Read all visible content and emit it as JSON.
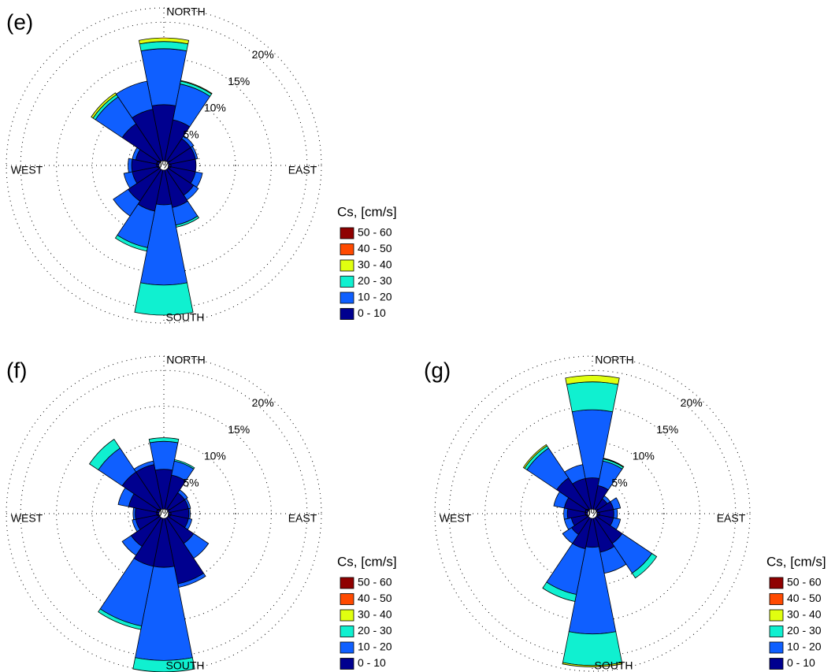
{
  "chart_data": [
    {
      "type": "windrose",
      "title": "(e)",
      "categories": [
        "NORTH",
        null,
        null,
        null,
        "EAST",
        null,
        null,
        null,
        "SOUTH",
        null,
        null,
        null,
        "WEST",
        null,
        null,
        null
      ],
      "rlim": [
        0,
        22
      ],
      "rticks": [
        {
          "value": 0,
          "label": "0%"
        },
        {
          "value": 5,
          "label": "5%"
        },
        {
          "value": 10,
          "label": "10%"
        },
        {
          "value": 15,
          "label": "15%"
        },
        {
          "value": 20,
          "label": "20%"
        }
      ],
      "legend_title": "Cs, [cm/s]",
      "series": [
        {
          "name": "0 - 10",
          "color": "#00008f",
          "values": [
            8.5,
            6.5,
            4.5,
            4.5,
            4.5,
            4.5,
            5,
            6,
            5.5,
            6.5,
            6,
            4.5,
            4.5,
            4,
            7,
            8
          ]
        },
        {
          "name": "10 - 20",
          "color": "#0f5fff",
          "values": [
            7.8,
            5.1,
            0.5,
            0.3,
            0,
            1.0,
            0.8,
            2.5,
            11.2,
            5.2,
            2.5,
            1.2,
            0.5,
            0.5,
            4.5,
            4
          ]
        },
        {
          "name": "20 - 30",
          "color": "#10f0d0",
          "values": [
            1.0,
            0.4,
            0,
            0,
            0,
            0,
            0,
            0.3,
            4.2,
            0.5,
            0,
            0,
            0,
            0,
            0.4,
            0
          ]
        },
        {
          "name": "30 - 40",
          "color": "#e0ff10",
          "values": [
            0.5,
            0.1,
            0,
            0,
            0,
            0,
            0,
            0,
            0,
            0,
            0,
            0,
            0,
            0,
            0.3,
            0
          ]
        },
        {
          "name": "40 - 50",
          "color": "#ff4a00",
          "values": [
            0,
            0,
            0,
            0,
            0,
            0,
            0,
            0,
            0,
            0,
            0,
            0,
            0,
            0,
            0,
            0
          ]
        },
        {
          "name": "50 - 60",
          "color": "#8f0000",
          "values": [
            0,
            0,
            0,
            0,
            0,
            0,
            0,
            0,
            0,
            0,
            0,
            0,
            0,
            0,
            0,
            0
          ]
        }
      ]
    },
    {
      "type": "windrose",
      "title": "(f)",
      "categories": [
        "NORTH",
        null,
        null,
        null,
        "EAST",
        null,
        null,
        null,
        "SOUTH",
        null,
        null,
        null,
        "WEST",
        null,
        null,
        null
      ],
      "rlim": [
        0,
        22
      ],
      "rticks": [
        {
          "value": 0,
          "label": "0%"
        },
        {
          "value": 5,
          "label": "5%"
        },
        {
          "value": 10,
          "label": "10%"
        },
        {
          "value": 15,
          "label": "15%"
        },
        {
          "value": 20,
          "label": "20%"
        }
      ],
      "series": [
        {
          "name": "0 - 10",
          "color": "#00008f",
          "values": [
            6.2,
            5.5,
            3.5,
            3.5,
            3.5,
            3.5,
            5,
            10,
            7.5,
            7.5,
            5.5,
            4,
            4,
            5,
            7,
            7
          ]
        },
        {
          "name": "10 - 20",
          "color": "#0f5fff",
          "values": [
            3.9,
            2.0,
            0.5,
            0.3,
            0.2,
            0.5,
            2.5,
            0.5,
            13.0,
            8.5,
            1.5,
            0.5,
            0.3,
            1.5,
            4,
            0.5
          ]
        },
        {
          "name": "20 - 30",
          "color": "#10f0d0",
          "values": [
            0.5,
            0.2,
            0,
            0,
            0,
            0,
            0,
            0,
            1.6,
            0.5,
            0,
            0,
            0,
            0,
            1.5,
            0
          ]
        },
        {
          "name": "30 - 40",
          "color": "#e0ff10",
          "values": [
            0,
            0,
            0,
            0,
            0,
            0,
            0,
            0,
            0,
            0,
            0,
            0,
            0,
            0,
            0,
            0
          ]
        },
        {
          "name": "40 - 50",
          "color": "#ff4a00",
          "values": [
            0,
            0,
            0,
            0,
            0,
            0,
            0,
            0,
            0,
            0,
            0,
            0,
            0,
            0,
            0,
            0
          ]
        },
        {
          "name": "50 - 60",
          "color": "#8f0000",
          "values": [
            0,
            0,
            0,
            0,
            0,
            0,
            0,
            0,
            0,
            0,
            0,
            0,
            0,
            0,
            0,
            0
          ]
        }
      ]
    },
    {
      "type": "windrose",
      "title": "(g)",
      "categories": [
        "NORTH",
        null,
        null,
        null,
        "EAST",
        null,
        null,
        null,
        "SOUTH",
        null,
        null,
        null,
        "WEST",
        null,
        null,
        null
      ],
      "rlim": [
        0,
        22
      ],
      "rticks": [
        {
          "value": 0,
          "label": "0%"
        },
        {
          "value": 5,
          "label": "5%"
        },
        {
          "value": 10,
          "label": "10%"
        },
        {
          "value": 15,
          "label": "15%"
        },
        {
          "value": 20,
          "label": "20%"
        }
      ],
      "legend_title": "Cs, [cm/s]",
      "series": [
        {
          "name": "0 - 10",
          "color": "#00008f",
          "values": [
            5,
            4,
            2.5,
            3,
            3,
            3,
            5,
            5.5,
            4.7,
            5,
            3.5,
            3,
            3.5,
            4,
            6,
            5
          ]
        },
        {
          "name": "10 - 20",
          "color": "#0f5fff",
          "values": [
            9.5,
            3.5,
            0.5,
            1.0,
            0.5,
            1.0,
            5,
            3,
            12.1,
            6.5,
            1.5,
            1.0,
            0.5,
            1.5,
            5,
            2
          ]
        },
        {
          "name": "20 - 30",
          "color": "#10f0d0",
          "values": [
            3.9,
            0.3,
            0,
            0,
            0,
            0,
            0.8,
            0,
            4.4,
            1,
            0,
            0,
            0,
            0,
            0.4,
            0
          ]
        },
        {
          "name": "30 - 40",
          "color": "#e0ff10",
          "values": [
            0.9,
            0.1,
            0,
            0,
            0,
            0,
            0,
            0,
            0.2,
            0,
            0,
            0,
            0,
            0,
            0.2,
            0
          ]
        },
        {
          "name": "40 - 50",
          "color": "#ff4a00",
          "values": [
            0,
            0,
            0,
            0,
            0,
            0,
            0,
            0,
            0,
            0,
            0,
            0,
            0,
            0,
            0,
            0
          ]
        },
        {
          "name": "50 - 60",
          "color": "#8f0000",
          "values": [
            0,
            0,
            0,
            0,
            0,
            0,
            0,
            0,
            0,
            0,
            0,
            0,
            0,
            0,
            0,
            0
          ]
        }
      ]
    }
  ]
}
